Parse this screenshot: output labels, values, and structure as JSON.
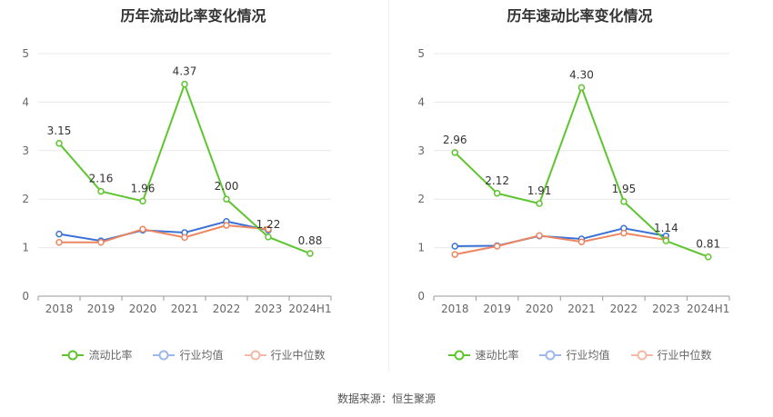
{
  "colors": {
    "primary": "#5ec52f",
    "industry_avg": "#3a72d6",
    "industry_median": "#ee8560",
    "legend_avg": "#9db8ec",
    "legend_median": "#f5b9a6",
    "grid": "#e8e8e8",
    "axis": "#999999"
  },
  "source": "数据来源：恒生聚源",
  "chart_data": [
    {
      "type": "line",
      "title": "历年流动比率变化情况",
      "x": [
        "2018",
        "2019",
        "2020",
        "2021",
        "2022",
        "2023",
        "2024H1"
      ],
      "yticks": [
        "0",
        "1",
        "2",
        "3",
        "4",
        "5"
      ],
      "ylim": [
        0,
        5
      ],
      "grid": true,
      "legend_position": "bottom",
      "series": [
        {
          "name": "流动比率",
          "values": [
            3.15,
            2.16,
            1.96,
            4.37,
            2.0,
            1.22,
            0.88
          ],
          "labels": [
            "3.15",
            "2.16",
            "1.96",
            "4.37",
            "2.00",
            "1.22",
            "0.88"
          ]
        },
        {
          "name": "行业均值",
          "values": [
            1.28,
            1.14,
            1.36,
            1.31,
            1.54,
            1.36,
            null
          ]
        },
        {
          "name": "行业中位数",
          "values": [
            1.11,
            1.11,
            1.38,
            1.21,
            1.46,
            1.38,
            null
          ]
        }
      ]
    },
    {
      "type": "line",
      "title": "历年速动比率变化情况",
      "x": [
        "2018",
        "2019",
        "2020",
        "2021",
        "2022",
        "2023",
        "2024H1"
      ],
      "yticks": [
        "0",
        "1",
        "2",
        "3",
        "4",
        "5"
      ],
      "ylim": [
        0,
        5
      ],
      "grid": true,
      "legend_position": "bottom",
      "series": [
        {
          "name": "速动比率",
          "values": [
            2.96,
            2.12,
            1.91,
            4.3,
            1.95,
            1.14,
            0.81
          ],
          "labels": [
            "2.96",
            "2.12",
            "1.91",
            "4.30",
            "1.95",
            "1.14",
            "0.81"
          ]
        },
        {
          "name": "行业均值",
          "values": [
            1.03,
            1.04,
            1.24,
            1.18,
            1.4,
            1.24,
            null
          ]
        },
        {
          "name": "行业中位数",
          "values": [
            0.86,
            1.03,
            1.25,
            1.12,
            1.3,
            1.16,
            null
          ]
        }
      ]
    }
  ]
}
